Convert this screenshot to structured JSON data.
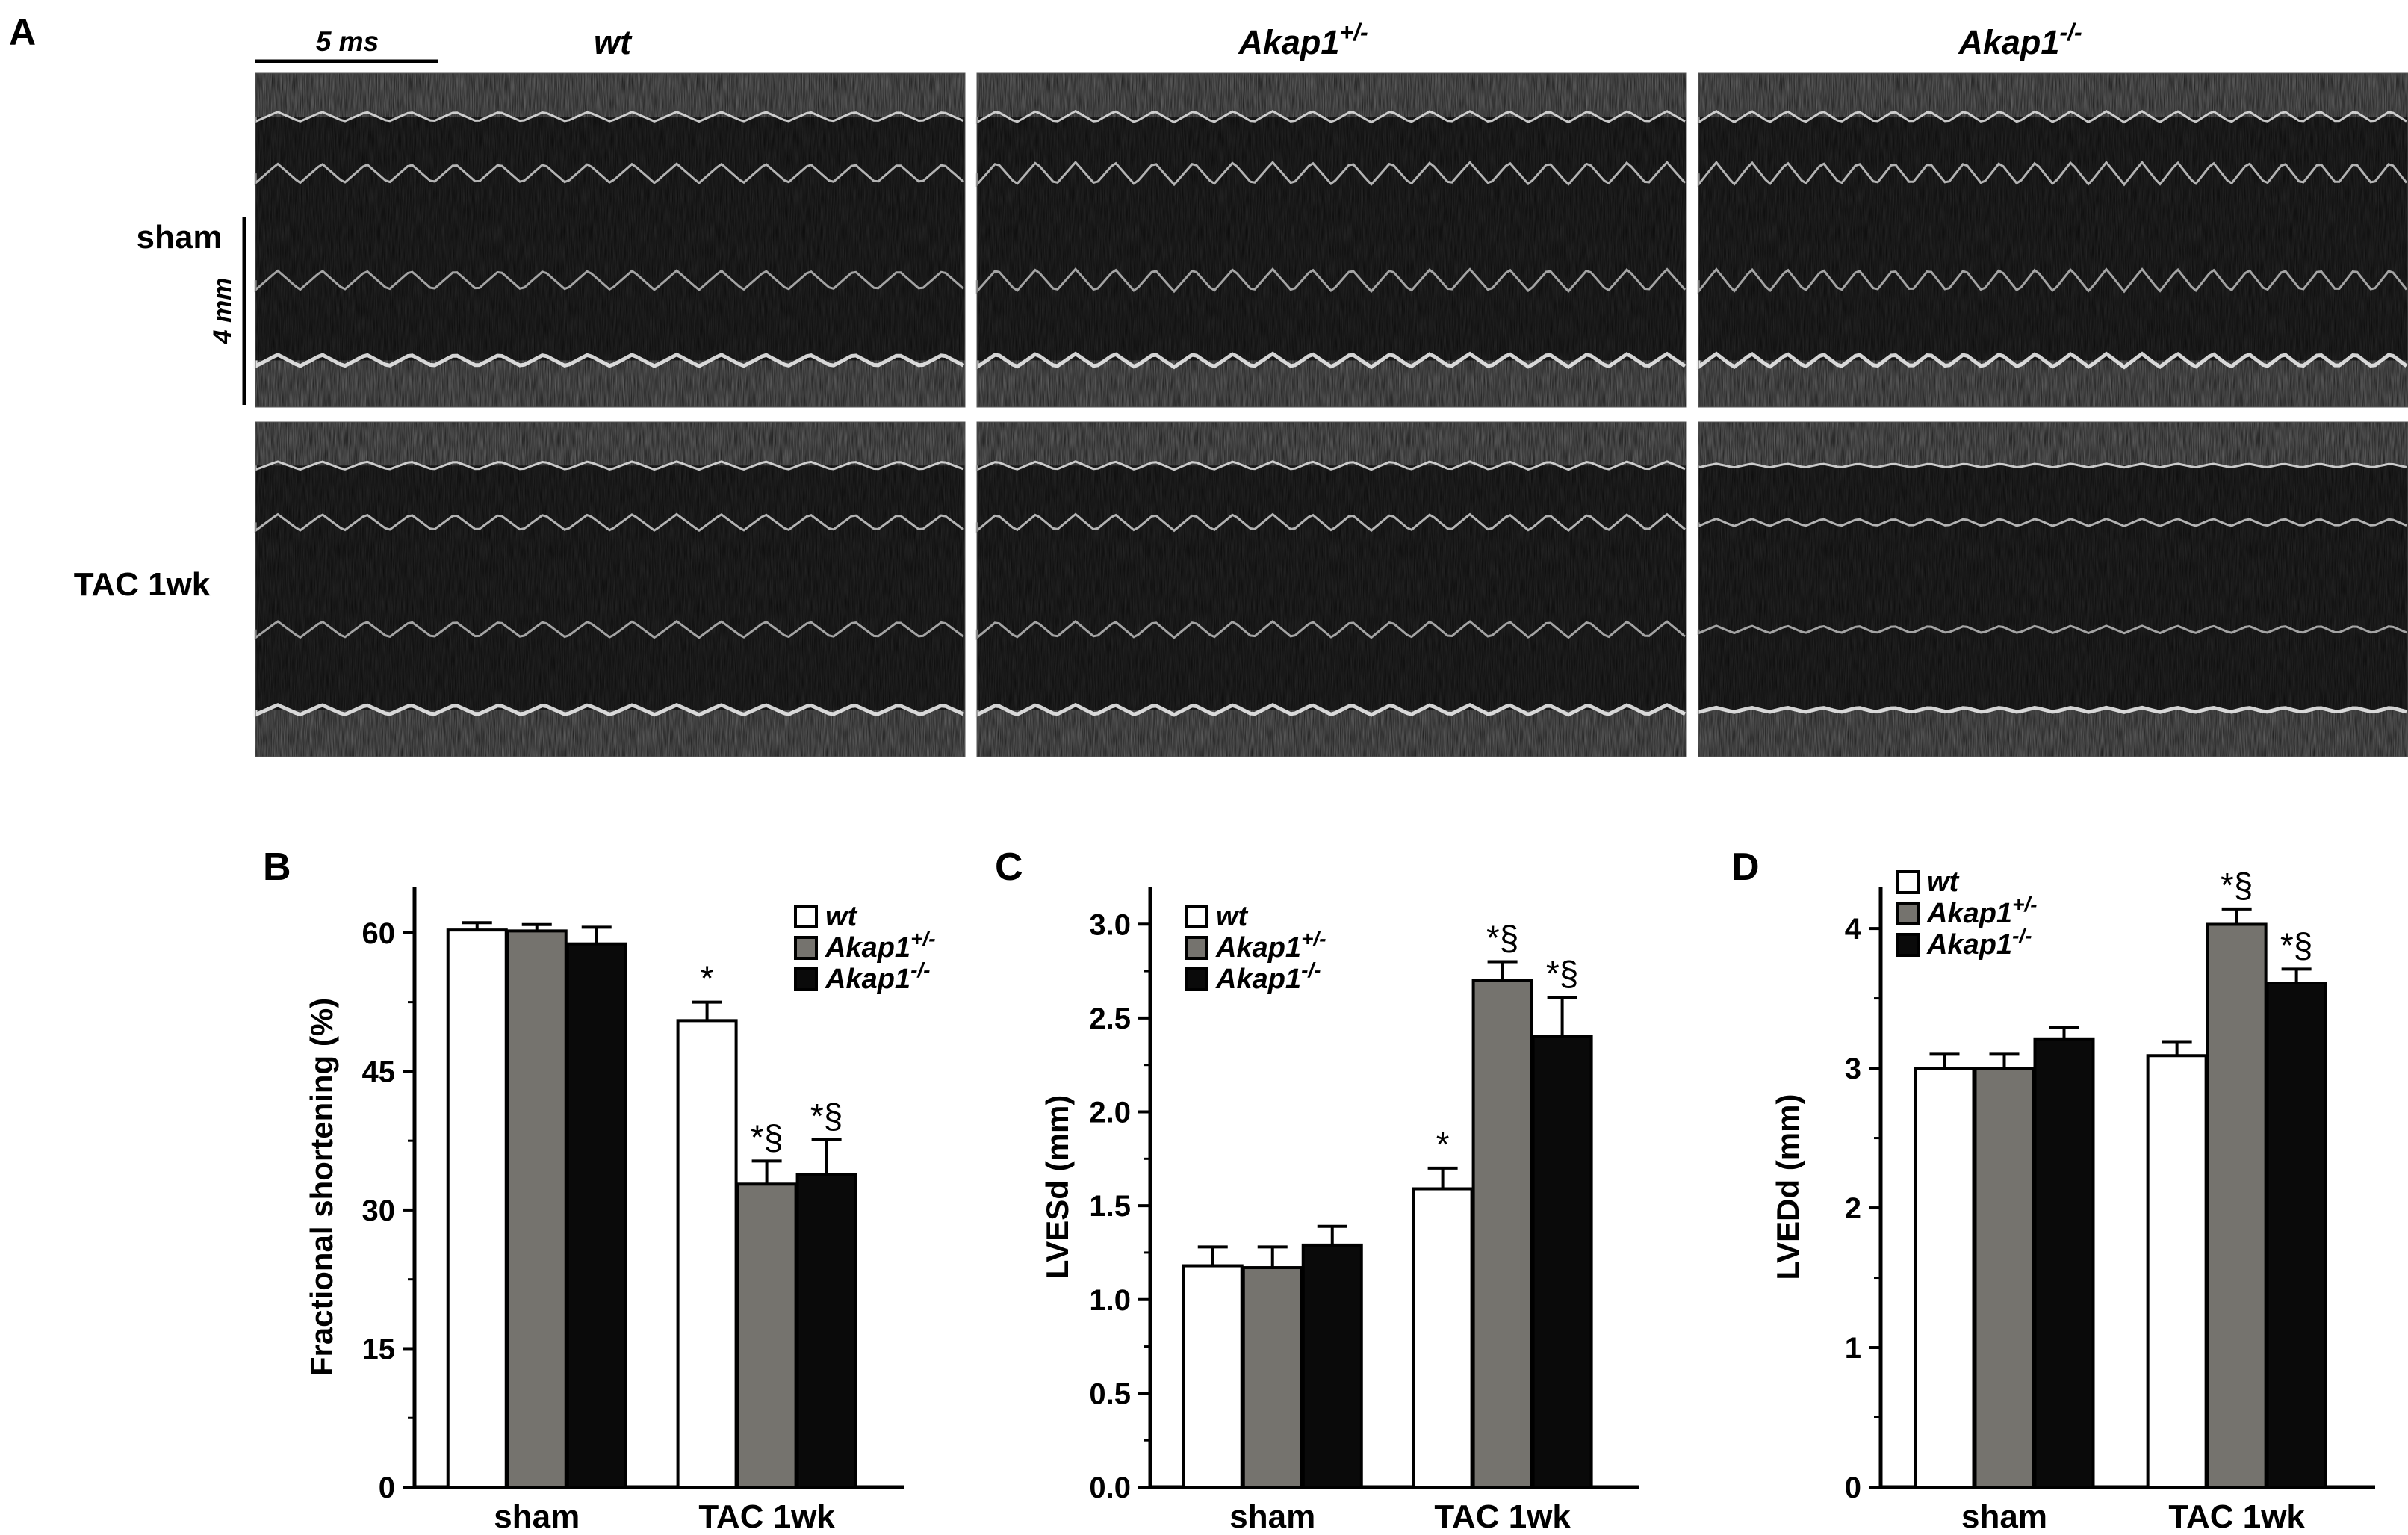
{
  "colors": {
    "wt": "#ffffff",
    "het": "#75736e",
    "ko": "#0a0a0a",
    "axis": "#000000",
    "echo_dark": "#222222",
    "echo_light": "#d8d8d8"
  },
  "panel_a": {
    "letter": "A",
    "scale_time": "5 ms",
    "scale_depth": "4 mm",
    "column_headers": [
      {
        "base": "wt",
        "sup": ""
      },
      {
        "base": "Akap1",
        "sup": "+/-"
      },
      {
        "base": "Akap1",
        "sup": "-/-"
      }
    ],
    "row_labels": [
      "sham",
      "TAC 1wk"
    ]
  },
  "chart_data": [
    {
      "panel": "B",
      "type": "bar",
      "ylabel": "Fractional shortening (%)",
      "xlabel": "",
      "categories": [
        "sham",
        "TAC 1wk"
      ],
      "ylim": [
        0,
        65
      ],
      "yticks": [
        0,
        15,
        30,
        45,
        60
      ],
      "legend_position": "top-right",
      "series": [
        {
          "name": "wt",
          "sup": "",
          "values": [
            60.3,
            50.5
          ],
          "errors": [
            0.8,
            2.0
          ],
          "color_key": "wt"
        },
        {
          "name": "Akap1",
          "sup": "+/-",
          "values": [
            60.2,
            32.8
          ],
          "errors": [
            0.7,
            2.5
          ],
          "color_key": "het"
        },
        {
          "name": "Akap1",
          "sup": "-/-",
          "values": [
            58.8,
            33.8
          ],
          "errors": [
            1.8,
            3.8
          ],
          "color_key": "ko"
        }
      ],
      "annotations": [
        {
          "category": 1,
          "series": 0,
          "text": "*"
        },
        {
          "category": 1,
          "series": 1,
          "text": "*§"
        },
        {
          "category": 1,
          "series": 2,
          "text": "*§"
        }
      ]
    },
    {
      "panel": "C",
      "type": "bar",
      "ylabel": "LVESd (mm)",
      "xlabel": "",
      "categories": [
        "sham",
        "TAC 1wk"
      ],
      "ylim": [
        0,
        3.2
      ],
      "yticks": [
        0,
        0.5,
        1.0,
        1.5,
        2.0,
        2.5,
        3.0
      ],
      "legend_position": "top-left",
      "series": [
        {
          "name": "wt",
          "sup": "",
          "values": [
            1.18,
            1.59
          ],
          "errors": [
            0.1,
            0.11
          ],
          "color_key": "wt"
        },
        {
          "name": "Akap1",
          "sup": "+/-",
          "values": [
            1.17,
            2.7
          ],
          "errors": [
            0.11,
            0.1
          ],
          "color_key": "het"
        },
        {
          "name": "Akap1",
          "sup": "-/-",
          "values": [
            1.29,
            2.4
          ],
          "errors": [
            0.1,
            0.21
          ],
          "color_key": "ko"
        }
      ],
      "annotations": [
        {
          "category": 1,
          "series": 0,
          "text": "*"
        },
        {
          "category": 1,
          "series": 1,
          "text": "*§"
        },
        {
          "category": 1,
          "series": 2,
          "text": "*§"
        }
      ]
    },
    {
      "panel": "D",
      "type": "bar",
      "ylabel": "LVEDd (mm)",
      "xlabel": "",
      "categories": [
        "sham",
        "TAC 1wk"
      ],
      "ylim": [
        0,
        4.3
      ],
      "yticks": [
        0,
        1,
        2,
        3,
        4
      ],
      "legend_position": "top-left",
      "series": [
        {
          "name": "wt",
          "sup": "",
          "values": [
            3.0,
            3.09
          ],
          "errors": [
            0.1,
            0.1
          ],
          "color_key": "wt"
        },
        {
          "name": "Akap1",
          "sup": "+/-",
          "values": [
            3.0,
            4.03
          ],
          "errors": [
            0.1,
            0.11
          ],
          "color_key": "het"
        },
        {
          "name": "Akap1",
          "sup": "-/-",
          "values": [
            3.21,
            3.61
          ],
          "errors": [
            0.08,
            0.1
          ],
          "color_key": "ko"
        }
      ],
      "annotations": [
        {
          "category": 1,
          "series": 1,
          "text": "*§"
        },
        {
          "category": 1,
          "series": 2,
          "text": "*§"
        }
      ]
    }
  ]
}
